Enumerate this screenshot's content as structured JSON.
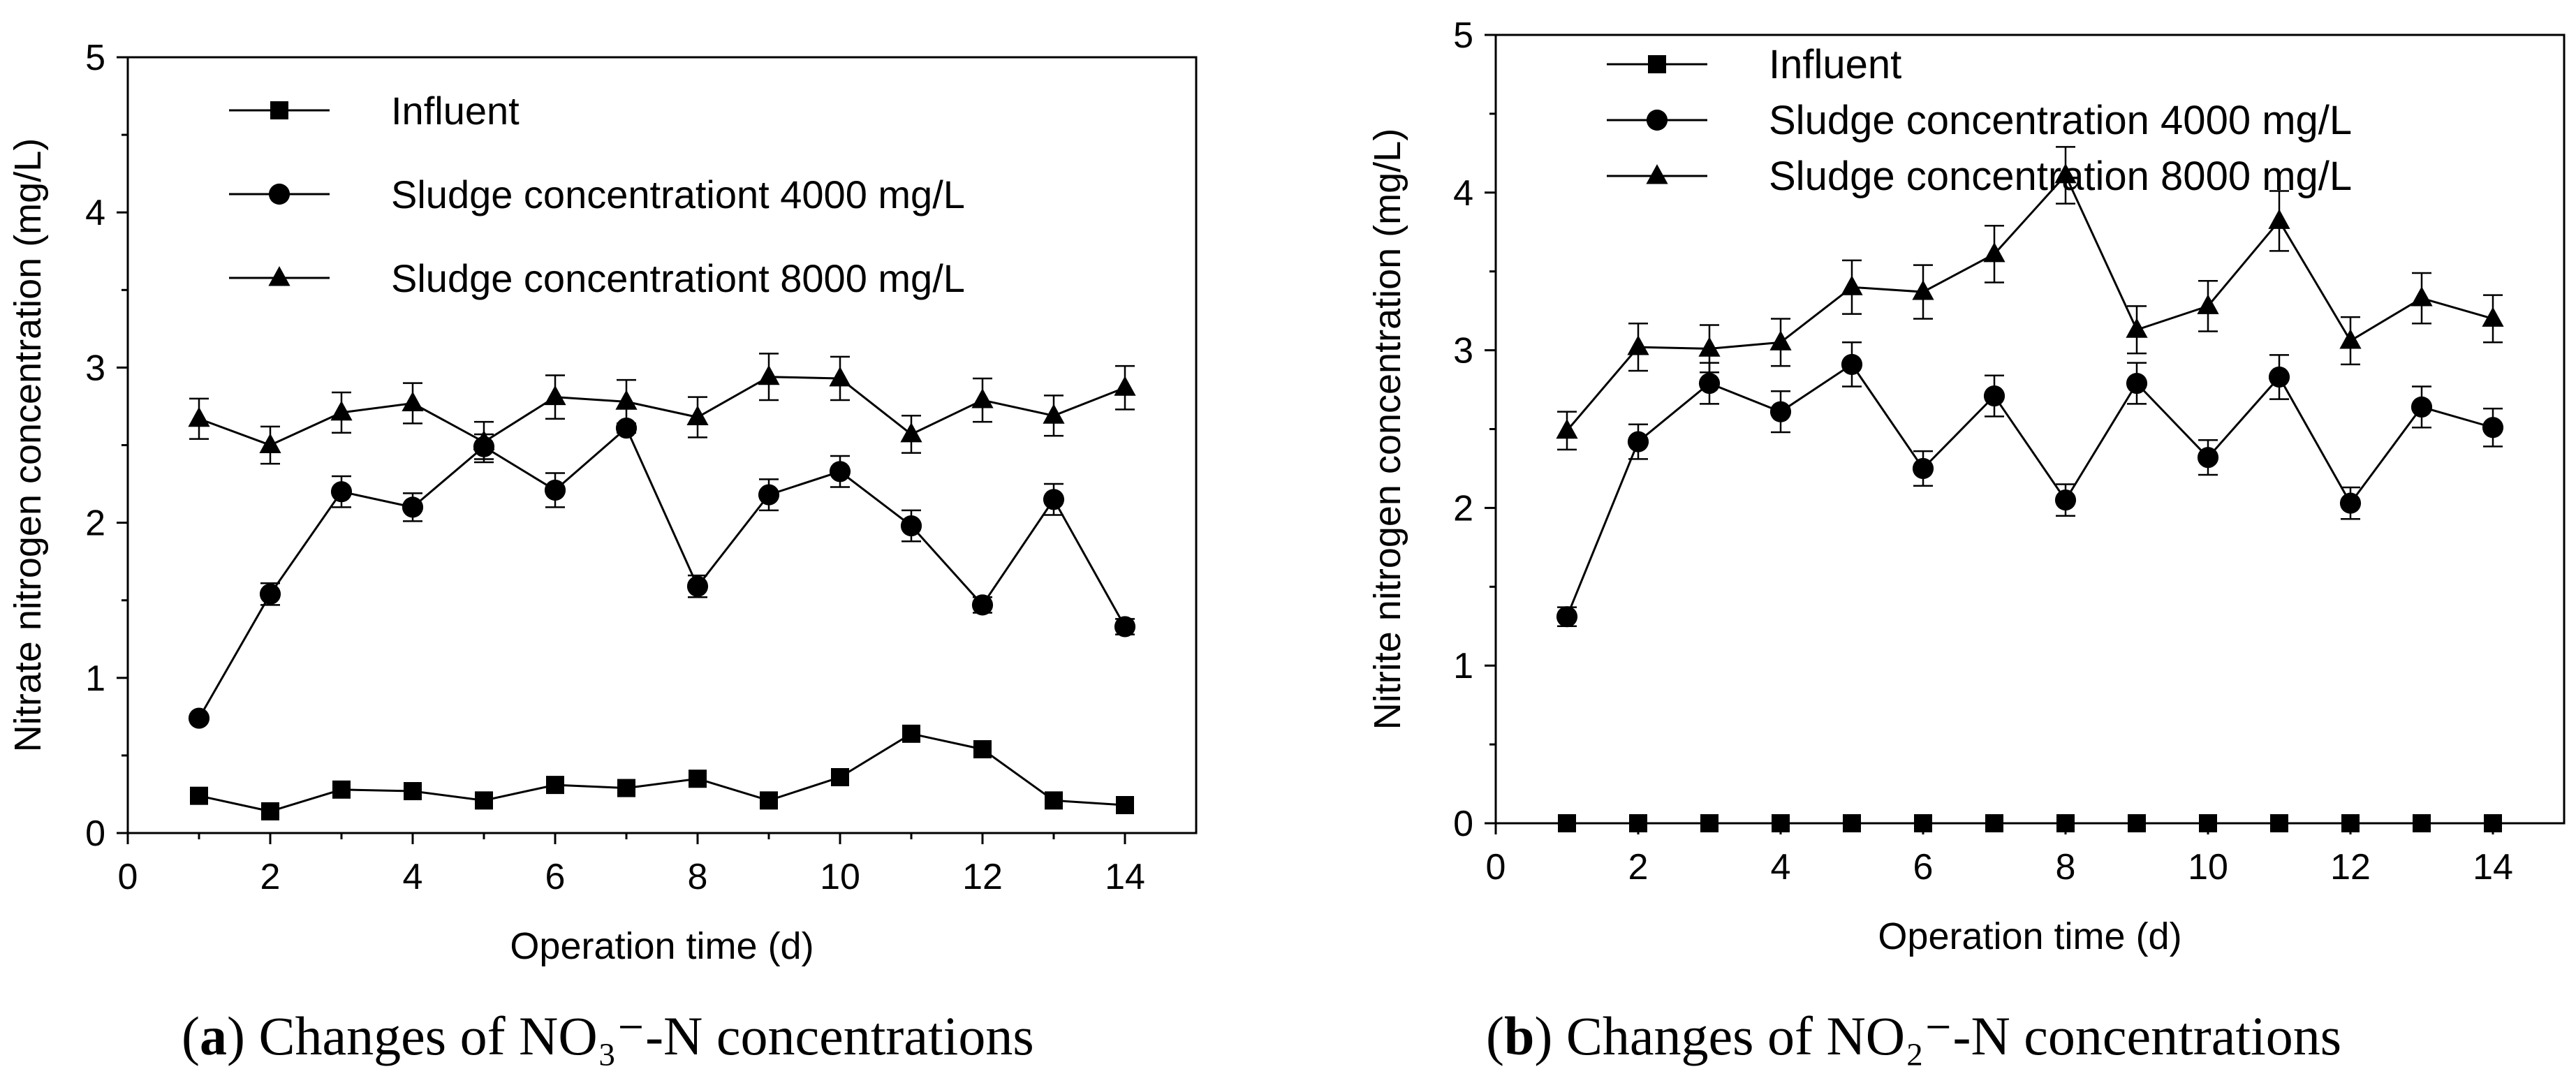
{
  "chart_data": [
    {
      "type": "line",
      "x": [
        1,
        2,
        3,
        4,
        5,
        6,
        7,
        8,
        9,
        10,
        11,
        12,
        13,
        14
      ],
      "xlabel": "Operation time (d)",
      "ylabel": "Nitrate nitrogen concentration (mg/L)",
      "xlim": [
        0,
        15
      ],
      "ylim": [
        0,
        5
      ],
      "xticks": [
        0,
        2,
        4,
        6,
        8,
        10,
        12,
        14
      ],
      "yticks": [
        0,
        1,
        2,
        3,
        4,
        5
      ],
      "legend_position": "top",
      "series": [
        {
          "name": "Influent",
          "marker": "square",
          "values": [
            0.24,
            0.14,
            0.28,
            0.27,
            0.21,
            0.31,
            0.29,
            0.35,
            0.21,
            0.36,
            0.64,
            0.54,
            0.21,
            0.18
          ],
          "errors": [
            0,
            0,
            0,
            0,
            0,
            0,
            0,
            0,
            0,
            0,
            0,
            0,
            0,
            0
          ]
        },
        {
          "name": "Sludge concentrationt 4000 mg/L",
          "marker": "circle",
          "values": [
            0.74,
            1.54,
            2.2,
            2.1,
            2.49,
            2.21,
            2.61,
            1.59,
            2.18,
            2.33,
            1.98,
            1.47,
            2.15,
            1.33
          ],
          "errors": [
            0.02,
            0.07,
            0.1,
            0.09,
            0.08,
            0.11,
            0.03,
            0.07,
            0.1,
            0.1,
            0.1,
            0.05,
            0.1,
            0.05
          ]
        },
        {
          "name": "Sludge concentrationt 8000 mg/L",
          "marker": "triangle",
          "values": [
            2.67,
            2.5,
            2.71,
            2.77,
            2.52,
            2.81,
            2.78,
            2.68,
            2.94,
            2.93,
            2.57,
            2.79,
            2.69,
            2.87
          ],
          "errors": [
            0.13,
            0.12,
            0.13,
            0.13,
            0.13,
            0.14,
            0.14,
            0.13,
            0.15,
            0.14,
            0.12,
            0.14,
            0.13,
            0.14
          ]
        }
      ],
      "caption": {
        "label": "a",
        "text": ") Changes of NO₃⁻-N concentrations"
      }
    },
    {
      "type": "line",
      "x": [
        1,
        2,
        3,
        4,
        5,
        6,
        7,
        8,
        9,
        10,
        11,
        12,
        13,
        14
      ],
      "xlabel": "Operation time (d)",
      "ylabel": "Nitrite nitrogen concentration (mg/L)",
      "xlim": [
        0,
        15
      ],
      "ylim": [
        0,
        5
      ],
      "xticks": [
        0,
        2,
        4,
        6,
        8,
        10,
        12,
        14
      ],
      "yticks": [
        0,
        1,
        2,
        3,
        4,
        5
      ],
      "legend_position": "top",
      "series": [
        {
          "name": "Influent",
          "marker": "square",
          "values": [
            0,
            0,
            0,
            0,
            0,
            0,
            0,
            0,
            0,
            0,
            0,
            0,
            0,
            0
          ],
          "errors": [
            0,
            0,
            0,
            0,
            0,
            0,
            0,
            0,
            0,
            0,
            0,
            0,
            0,
            0
          ]
        },
        {
          "name": "Sludge concentration 4000 mg/L",
          "marker": "circle",
          "values": [
            1.31,
            2.42,
            2.79,
            2.61,
            2.91,
            2.25,
            2.71,
            2.05,
            2.79,
            2.32,
            2.83,
            2.03,
            2.64,
            2.51
          ],
          "errors": [
            0.06,
            0.11,
            0.13,
            0.13,
            0.14,
            0.11,
            0.13,
            0.1,
            0.13,
            0.11,
            0.14,
            0.1,
            0.13,
            0.12
          ]
        },
        {
          "name": "Sludge concentration 8000 mg/L",
          "marker": "triangle",
          "values": [
            2.49,
            3.02,
            3.01,
            3.05,
            3.4,
            3.37,
            3.61,
            4.11,
            3.13,
            3.28,
            3.82,
            3.06,
            3.33,
            3.2
          ],
          "errors": [
            0.12,
            0.15,
            0.15,
            0.15,
            0.17,
            0.17,
            0.18,
            0.18,
            0.15,
            0.16,
            0.19,
            0.15,
            0.16,
            0.15
          ]
        }
      ],
      "caption": {
        "label": "b",
        "text": ") Changes of NO₂⁻-N concentrations"
      }
    }
  ]
}
